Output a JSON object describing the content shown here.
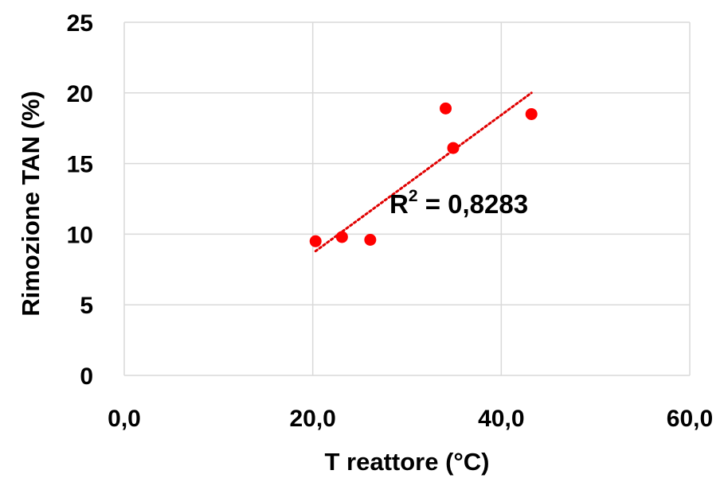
{
  "chart_data": {
    "type": "scatter",
    "title": "",
    "xlabel": "T reattore (°C)",
    "ylabel": "Rimozione TAN (%)",
    "xlim": [
      0,
      60
    ],
    "ylim": [
      0,
      25
    ],
    "xticks": [
      "0,0",
      "20,0",
      "40,0",
      "60,0"
    ],
    "yticks": [
      "0",
      "5",
      "10",
      "15",
      "20",
      "25"
    ],
    "grid": true,
    "series": [
      {
        "color": "#ff0000",
        "points": [
          {
            "x": 20.3,
            "y": 9.5
          },
          {
            "x": 23.1,
            "y": 9.8
          },
          {
            "x": 26.1,
            "y": 9.6
          },
          {
            "x": 34.1,
            "y": 18.9
          },
          {
            "x": 34.9,
            "y": 16.1
          },
          {
            "x": 43.2,
            "y": 18.5
          }
        ]
      }
    ],
    "trendline": {
      "type": "linear",
      "style": "dotted",
      "color": "#e00000",
      "from": {
        "x": 20.3,
        "y": 8.8
      },
      "to": {
        "x": 43.2,
        "y": 20.0
      }
    },
    "annotation": {
      "base": "R",
      "superscript": "2",
      "text": " = 0,8283"
    }
  }
}
